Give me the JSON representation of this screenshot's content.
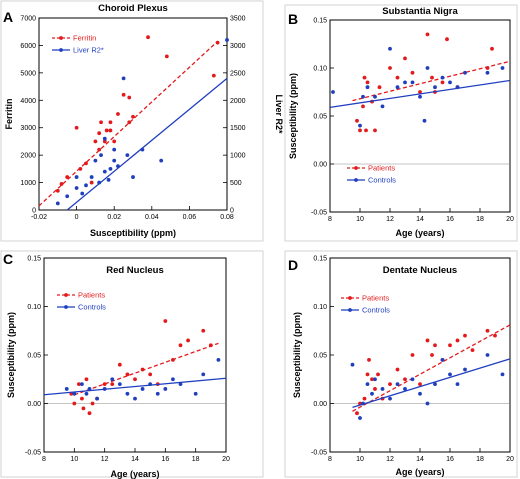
{
  "chart_data": [
    {
      "letter": "A",
      "title": "Choroid Plexus",
      "type": "scatter",
      "xlabel": "Susceptibility (ppm)",
      "ylabel": "Ferritin",
      "y2label": "Liver R2*",
      "xlim": [
        -0.02,
        0.08
      ],
      "ylim": [
        0,
        7000
      ],
      "y2lim": [
        0,
        3500
      ],
      "xticks": [
        -0.02,
        0,
        0.02,
        0.04,
        0.06,
        0.08
      ],
      "yticks": [
        0,
        1000,
        2000,
        3000,
        4000,
        5000,
        6000,
        7000
      ],
      "y2ticks": [
        0,
        500,
        1000,
        1500,
        2000,
        2500,
        3000,
        3500
      ],
      "xtick_labels": [
        "-0.02",
        "0",
        "0.02",
        "0.04",
        "0.06",
        "0.08"
      ],
      "ytick_labels": [
        "0",
        "1000",
        "2000",
        "3000",
        "4000",
        "5000",
        "6000",
        "7000"
      ],
      "y2tick_labels": [
        "0",
        "500",
        "1000",
        "1500",
        "2000",
        "2500",
        "3000",
        "3500"
      ],
      "legend_position": "top-left",
      "series": [
        {
          "name": "Ferritin",
          "axis": "left",
          "color": "#e31a1c",
          "line_style": "dashed",
          "fit": [
            [
              -0.02,
              150
            ],
            [
              0.075,
              6150
            ]
          ],
          "points": [
            [
              -0.01,
              700
            ],
            [
              -0.008,
              950
            ],
            [
              -0.005,
              1200
            ],
            [
              0.0,
              3000
            ],
            [
              0.002,
              1500
            ],
            [
              0.005,
              1700
            ],
            [
              0.008,
              1000
            ],
            [
              0.01,
              2500
            ],
            [
              0.012,
              2200
            ],
            [
              0.012,
              2800
            ],
            [
              0.013,
              3200
            ],
            [
              0.015,
              2500
            ],
            [
              0.016,
              2900
            ],
            [
              0.018,
              3200
            ],
            [
              0.018,
              2900
            ],
            [
              0.02,
              2500
            ],
            [
              0.022,
              3500
            ],
            [
              0.025,
              4200
            ],
            [
              0.028,
              3200
            ],
            [
              0.028,
              4100
            ],
            [
              0.03,
              3400
            ],
            [
              0.038,
              6300
            ],
            [
              0.048,
              5600
            ],
            [
              0.073,
              4900
            ],
            [
              0.075,
              6100
            ]
          ]
        },
        {
          "name": "Liver R2*",
          "axis": "right",
          "color": "#1f3fbf",
          "line_style": "solid",
          "fit": [
            [
              -0.005,
              0
            ],
            [
              0.08,
              2400
            ]
          ],
          "points": [
            [
              -0.01,
              120
            ],
            [
              -0.005,
              250
            ],
            [
              0.0,
              400
            ],
            [
              0.0,
              600
            ],
            [
              0.003,
              300
            ],
            [
              0.005,
              450
            ],
            [
              0.008,
              600
            ],
            [
              0.01,
              900
            ],
            [
              0.012,
              500
            ],
            [
              0.013,
              1000
            ],
            [
              0.015,
              700
            ],
            [
              0.015,
              1300
            ],
            [
              0.017,
              550
            ],
            [
              0.018,
              750
            ],
            [
              0.02,
              900
            ],
            [
              0.02,
              1100
            ],
            [
              0.022,
              800
            ],
            [
              0.025,
              2400
            ],
            [
              0.027,
              1000
            ],
            [
              0.03,
              600
            ],
            [
              0.035,
              1100
            ],
            [
              0.045,
              900
            ],
            [
              0.08,
              3100
            ]
          ]
        }
      ]
    },
    {
      "letter": "B",
      "title": "Substantia Nigra",
      "type": "scatter",
      "xlabel": "Age (years)",
      "ylabel": "Susceptibility (ppm)",
      "xlim": [
        8,
        20
      ],
      "ylim": [
        -0.05,
        0.15
      ],
      "xticks": [
        8,
        10,
        12,
        14,
        16,
        18,
        20
      ],
      "yticks": [
        -0.05,
        0,
        0.05,
        0.1,
        0.15
      ],
      "xtick_labels": [
        "8",
        "10",
        "12",
        "14",
        "16",
        "18",
        "20"
      ],
      "ytick_labels": [
        "-0.05",
        "0.00",
        "0.05",
        "0.10",
        "0.15"
      ],
      "legend_position": "bottom",
      "series": [
        {
          "name": "Patients",
          "color": "#e31a1c",
          "line_style": "dashed",
          "fit": [
            [
              9.5,
              0.066
            ],
            [
              20,
              0.107
            ]
          ],
          "points": [
            [
              9.8,
              0.045
            ],
            [
              10.0,
              0.035
            ],
            [
              10.2,
              0.06
            ],
            [
              10.3,
              0.09
            ],
            [
              10.4,
              0.035
            ],
            [
              10.5,
              0.085
            ],
            [
              10.8,
              0.065
            ],
            [
              11.0,
              0.035
            ],
            [
              11.3,
              0.08
            ],
            [
              12.0,
              0.1
            ],
            [
              12.5,
              0.09
            ],
            [
              13.0,
              0.11
            ],
            [
              13.5,
              0.095
            ],
            [
              14.0,
              0.075
            ],
            [
              14.5,
              0.135
            ],
            [
              14.8,
              0.09
            ],
            [
              15.0,
              0.075
            ],
            [
              15.5,
              0.085
            ],
            [
              15.8,
              0.13
            ],
            [
              16.5,
              0.08
            ],
            [
              18.5,
              0.1
            ],
            [
              18.8,
              0.12
            ]
          ]
        },
        {
          "name": "Controls",
          "color": "#1f3fbf",
          "line_style": "solid",
          "fit": [
            [
              8,
              0.059
            ],
            [
              20,
              0.087
            ]
          ],
          "points": [
            [
              8.2,
              0.075
            ],
            [
              10.0,
              0.04
            ],
            [
              10.2,
              0.07
            ],
            [
              10.5,
              0.08
            ],
            [
              11.0,
              0.07
            ],
            [
              11.5,
              0.06
            ],
            [
              12.0,
              0.12
            ],
            [
              12.5,
              0.08
            ],
            [
              13.0,
              0.085
            ],
            [
              13.5,
              0.085
            ],
            [
              14.0,
              0.07
            ],
            [
              14.3,
              0.045
            ],
            [
              14.5,
              0.1
            ],
            [
              15.0,
              0.08
            ],
            [
              15.5,
              0.09
            ],
            [
              16.0,
              0.085
            ],
            [
              16.5,
              0.08
            ],
            [
              17.0,
              0.095
            ],
            [
              18.5,
              0.095
            ],
            [
              19.5,
              0.1
            ]
          ]
        }
      ]
    },
    {
      "letter": "C",
      "title": "Red Nucleus",
      "type": "scatter",
      "xlabel": "Age (years)",
      "ylabel": "Susceptibility (ppm)",
      "xlim": [
        8,
        20
      ],
      "ylim": [
        -0.05,
        0.15
      ],
      "xticks": [
        8,
        10,
        12,
        14,
        16,
        18,
        20
      ],
      "yticks": [
        -0.05,
        0,
        0.05,
        0.1,
        0.15
      ],
      "xtick_labels": [
        "8",
        "10",
        "12",
        "14",
        "16",
        "18",
        "20"
      ],
      "ytick_labels": [
        "-0.05",
        "0.00",
        "0.05",
        "0.10",
        "0.15"
      ],
      "legend_position": "top-left",
      "series": [
        {
          "name": "Patients",
          "color": "#e31a1c",
          "line_style": "dashed",
          "fit": [
            [
              10,
              0.009
            ],
            [
              19.5,
              0.062
            ]
          ],
          "points": [
            [
              9.8,
              0.01
            ],
            [
              10.0,
              0.0
            ],
            [
              10.3,
              0.02
            ],
            [
              10.5,
              0.005
            ],
            [
              10.6,
              -0.005
            ],
            [
              10.8,
              0.025
            ],
            [
              11.0,
              -0.01
            ],
            [
              11.2,
              0.0
            ],
            [
              11.5,
              0.005
            ],
            [
              12.0,
              0.02
            ],
            [
              12.5,
              0.02
            ],
            [
              13.0,
              0.04
            ],
            [
              13.5,
              0.03
            ],
            [
              14.0,
              0.025
            ],
            [
              14.5,
              0.035
            ],
            [
              15.0,
              0.03
            ],
            [
              15.5,
              0.02
            ],
            [
              16.0,
              0.085
            ],
            [
              16.5,
              0.045
            ],
            [
              17.0,
              0.06
            ],
            [
              17.5,
              0.065
            ],
            [
              18.5,
              0.075
            ],
            [
              19.0,
              0.06
            ]
          ]
        },
        {
          "name": "Controls",
          "color": "#1f3fbf",
          "line_style": "solid",
          "fit": [
            [
              8,
              0.009
            ],
            [
              20,
              0.026
            ]
          ],
          "points": [
            [
              9.5,
              0.015
            ],
            [
              10.0,
              0.01
            ],
            [
              10.5,
              0.02
            ],
            [
              10.8,
              0.01
            ],
            [
              11.0,
              0.015
            ],
            [
              11.5,
              0.005
            ],
            [
              12.0,
              0.015
            ],
            [
              12.5,
              0.025
            ],
            [
              13.0,
              0.02
            ],
            [
              13.5,
              0.01
            ],
            [
              14.0,
              0.005
            ],
            [
              14.5,
              0.015
            ],
            [
              15.0,
              0.02
            ],
            [
              15.5,
              0.01
            ],
            [
              16.0,
              0.015
            ],
            [
              16.5,
              0.025
            ],
            [
              17.0,
              0.02
            ],
            [
              18.0,
              0.01
            ],
            [
              18.5,
              0.03
            ],
            [
              19.5,
              0.045
            ]
          ]
        }
      ]
    },
    {
      "letter": "D",
      "title": "Dentate Nucleus",
      "type": "scatter",
      "xlabel": "Age (years)",
      "ylabel": "Susceptibility (ppm)",
      "xlim": [
        8,
        20
      ],
      "ylim": [
        -0.05,
        0.15
      ],
      "xticks": [
        8,
        10,
        12,
        14,
        16,
        18,
        20
      ],
      "yticks": [
        -0.05,
        0,
        0.05,
        0.1,
        0.15
      ],
      "xtick_labels": [
        "8",
        "10",
        "12",
        "14",
        "16",
        "18",
        "20"
      ],
      "ytick_labels": [
        "-0.05",
        "0.00",
        "0.05",
        "0.10",
        "0.15"
      ],
      "legend_position": "top-left",
      "series": [
        {
          "name": "Patients",
          "color": "#e31a1c",
          "line_style": "dashed",
          "fit": [
            [
              9.5,
              -0.008
            ],
            [
              20,
              0.081
            ]
          ],
          "points": [
            [
              9.8,
              -0.01
            ],
            [
              10.0,
              0.0
            ],
            [
              10.3,
              0.005
            ],
            [
              10.5,
              0.03
            ],
            [
              10.6,
              0.045
            ],
            [
              10.8,
              0.025
            ],
            [
              11.0,
              0.015
            ],
            [
              11.2,
              0.03
            ],
            [
              11.5,
              0.005
            ],
            [
              12.0,
              0.02
            ],
            [
              12.5,
              0.035
            ],
            [
              13.0,
              0.025
            ],
            [
              13.5,
              0.05
            ],
            [
              14.0,
              0.02
            ],
            [
              14.5,
              0.065
            ],
            [
              14.8,
              0.05
            ],
            [
              15.0,
              0.06
            ],
            [
              15.5,
              0.045
            ],
            [
              16.0,
              0.06
            ],
            [
              16.5,
              0.065
            ],
            [
              17.0,
              0.07
            ],
            [
              17.5,
              0.055
            ],
            [
              18.5,
              0.075
            ],
            [
              19.0,
              0.07
            ]
          ]
        },
        {
          "name": "Controls",
          "color": "#1f3fbf",
          "line_style": "solid",
          "fit": [
            [
              9.5,
              -0.004
            ],
            [
              20,
              0.046
            ]
          ],
          "points": [
            [
              9.5,
              0.04
            ],
            [
              10.0,
              -0.015
            ],
            [
              10.2,
              0.0
            ],
            [
              10.5,
              0.02
            ],
            [
              10.8,
              0.01
            ],
            [
              11.0,
              0.025
            ],
            [
              11.5,
              0.015
            ],
            [
              12.0,
              0.005
            ],
            [
              12.5,
              0.02
            ],
            [
              13.0,
              0.015
            ],
            [
              13.5,
              0.025
            ],
            [
              14.0,
              0.01
            ],
            [
              14.5,
              0.0
            ],
            [
              15.0,
              0.02
            ],
            [
              15.5,
              0.045
            ],
            [
              16.0,
              0.03
            ],
            [
              16.5,
              0.02
            ],
            [
              17.0,
              0.035
            ],
            [
              18.5,
              0.05
            ],
            [
              19.5,
              0.03
            ]
          ]
        }
      ]
    }
  ]
}
